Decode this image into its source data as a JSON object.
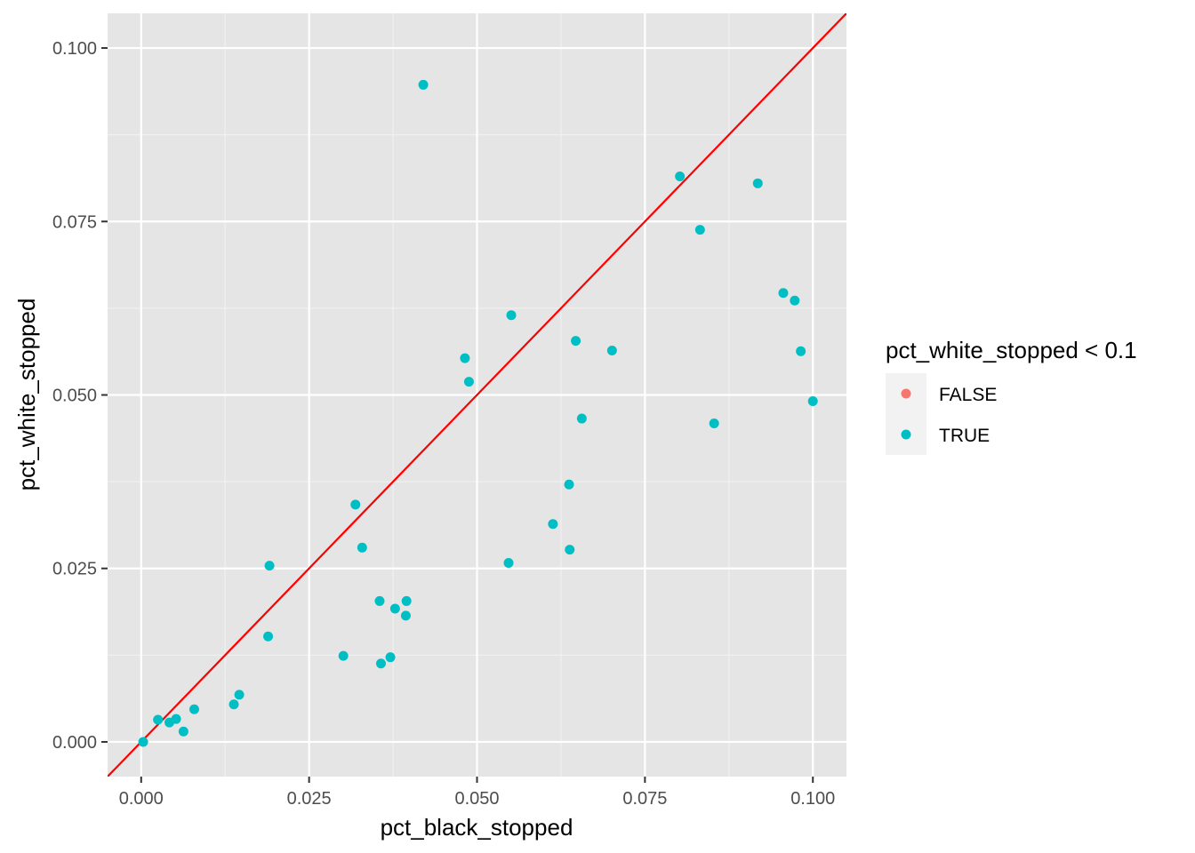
{
  "chart_data": {
    "type": "scatter",
    "title": "",
    "xlabel": "pct_black_stopped",
    "ylabel": "pct_white_stopped",
    "xlim": [
      -0.005,
      0.105
    ],
    "ylim": [
      -0.005,
      0.105
    ],
    "x_ticks": [
      0.0,
      0.025,
      0.05,
      0.075,
      0.1
    ],
    "x_tick_labels": [
      "0.000",
      "0.025",
      "0.050",
      "0.075",
      "0.100"
    ],
    "y_ticks": [
      0.0,
      0.025,
      0.05,
      0.075,
      0.1
    ],
    "y_tick_labels": [
      "0.000",
      "0.025",
      "0.050",
      "0.075",
      "0.100"
    ],
    "grid": true,
    "background": "#e5e5e5",
    "reference_line": {
      "slope": 1,
      "intercept": 0,
      "color": "#ff0000"
    },
    "legend": {
      "title": "pct_white_stopped < 0.1",
      "position": "right",
      "entries": [
        {
          "label": "FALSE",
          "color": "#f8766d"
        },
        {
          "label": "TRUE",
          "color": "#00bfc4"
        }
      ]
    },
    "series": [
      {
        "name": "TRUE",
        "color": "#00bfc4",
        "points": [
          [
            0.0003,
            0.0
          ],
          [
            0.0025,
            0.0032
          ],
          [
            0.0042,
            0.0028
          ],
          [
            0.0052,
            0.0033
          ],
          [
            0.0063,
            0.0015
          ],
          [
            0.0079,
            0.0047
          ],
          [
            0.0138,
            0.0054
          ],
          [
            0.0146,
            0.0068
          ],
          [
            0.0189,
            0.0152
          ],
          [
            0.0191,
            0.0254
          ],
          [
            0.0301,
            0.0124
          ],
          [
            0.0319,
            0.0342
          ],
          [
            0.0329,
            0.028
          ],
          [
            0.0355,
            0.0203
          ],
          [
            0.0357,
            0.0113
          ],
          [
            0.0371,
            0.0122
          ],
          [
            0.0378,
            0.0192
          ],
          [
            0.0394,
            0.0182
          ],
          [
            0.0395,
            0.0203
          ],
          [
            0.042,
            0.0947
          ],
          [
            0.0482,
            0.0553
          ],
          [
            0.0488,
            0.0519
          ],
          [
            0.0547,
            0.0258
          ],
          [
            0.0551,
            0.0615
          ],
          [
            0.0613,
            0.0314
          ],
          [
            0.0637,
            0.0371
          ],
          [
            0.0638,
            0.0277
          ],
          [
            0.0647,
            0.0578
          ],
          [
            0.0656,
            0.0466
          ],
          [
            0.0701,
            0.0564
          ],
          [
            0.0802,
            0.0815
          ],
          [
            0.0832,
            0.0738
          ],
          [
            0.0853,
            0.0459
          ],
          [
            0.0918,
            0.0805
          ],
          [
            0.0956,
            0.0647
          ],
          [
            0.0973,
            0.0636
          ],
          [
            0.0982,
            0.0563
          ],
          [
            0.1,
            0.0491
          ]
        ]
      }
    ]
  }
}
